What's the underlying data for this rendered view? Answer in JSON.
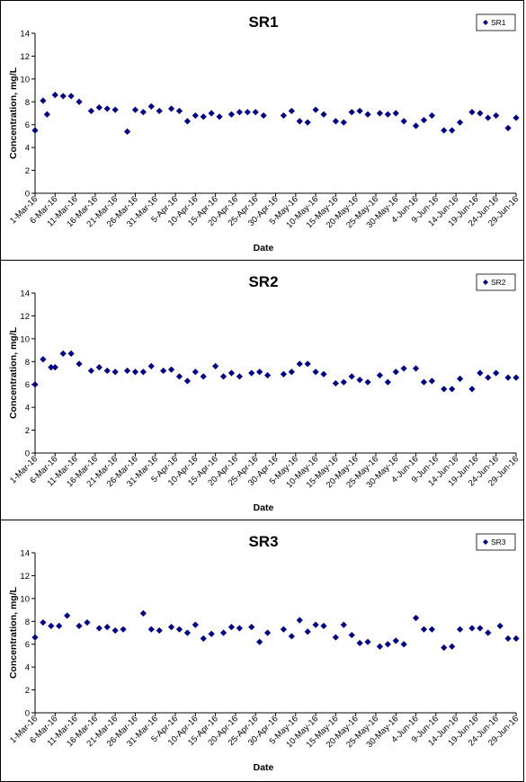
{
  "chart_data": [
    {
      "type": "scatter",
      "title": "SR1",
      "xlabel": "Date",
      "ylabel": "Concentration, mg/L",
      "ylim": [
        0,
        14
      ],
      "yticks": [
        0,
        2,
        4,
        6,
        8,
        10,
        12,
        14
      ],
      "xlim": [
        "2016-03-01",
        "2016-06-29"
      ],
      "xtick_labels": [
        "1-Mar-16",
        "6-Mar-16",
        "11-Mar-16",
        "16-Mar-16",
        "21-Mar-16",
        "26-Mar-16",
        "31-Mar-16",
        "5-Apr-16",
        "10-Apr-16",
        "15-Apr-16",
        "20-Apr-16",
        "25-Apr-16",
        "30-Apr-16",
        "5-May-16",
        "10-May-16",
        "15-May-16",
        "20-May-16",
        "25-May-16",
        "30-May-16",
        "4-Jun-16",
        "9-Jun-16",
        "14-Jun-16",
        "19-Jun-16",
        "24-Jun-16",
        "29-Jun-16"
      ],
      "legend": "top-right",
      "grid": false,
      "color": "#000080",
      "series": [
        {
          "name": "SR1",
          "x": [
            "2016-03-01",
            "2016-03-03",
            "2016-03-04",
            "2016-03-06",
            "2016-03-08",
            "2016-03-10",
            "2016-03-12",
            "2016-03-15",
            "2016-03-17",
            "2016-03-19",
            "2016-03-21",
            "2016-03-24",
            "2016-03-26",
            "2016-03-28",
            "2016-03-30",
            "2016-04-01",
            "2016-04-04",
            "2016-04-06",
            "2016-04-08",
            "2016-04-10",
            "2016-04-12",
            "2016-04-14",
            "2016-04-16",
            "2016-04-19",
            "2016-04-21",
            "2016-04-23",
            "2016-04-25",
            "2016-04-27",
            "2016-05-02",
            "2016-05-04",
            "2016-05-06",
            "2016-05-08",
            "2016-05-10",
            "2016-05-12",
            "2016-05-15",
            "2016-05-17",
            "2016-05-19",
            "2016-05-21",
            "2016-05-23",
            "2016-05-26",
            "2016-05-28",
            "2016-05-30",
            "2016-06-01",
            "2016-06-04",
            "2016-06-06",
            "2016-06-08",
            "2016-06-11",
            "2016-06-13",
            "2016-06-15",
            "2016-06-18",
            "2016-06-20",
            "2016-06-22",
            "2016-06-24",
            "2016-06-27",
            "2016-06-29"
          ],
          "y": [
            5.5,
            8.1,
            6.9,
            8.6,
            8.5,
            8.5,
            8.0,
            7.2,
            7.5,
            7.4,
            7.3,
            5.4,
            7.3,
            7.1,
            7.6,
            7.2,
            7.4,
            7.2,
            6.3,
            6.8,
            6.7,
            7.0,
            6.7,
            6.9,
            7.1,
            7.1,
            7.1,
            6.8,
            6.8,
            7.2,
            6.3,
            6.2,
            7.3,
            6.9,
            6.3,
            6.2,
            7.1,
            7.2,
            6.9,
            7.0,
            6.9,
            7.0,
            6.3,
            5.9,
            6.4,
            6.8,
            5.5,
            5.5,
            6.2,
            7.1,
            7.0,
            6.6,
            6.8,
            5.7,
            6.6
          ]
        }
      ]
    },
    {
      "type": "scatter",
      "title": "SR2",
      "xlabel": "Date",
      "ylabel": "Concentration, mg/L",
      "ylim": [
        0,
        14
      ],
      "yticks": [
        0,
        2,
        4,
        6,
        8,
        10,
        12,
        14
      ],
      "xlim": [
        "2016-03-01",
        "2016-06-29"
      ],
      "xtick_labels": [
        "1-Mar-16",
        "6-Mar-16",
        "11-Mar-16",
        "16-Mar-16",
        "21-Mar-16",
        "26-Mar-16",
        "31-Mar-16",
        "5-Apr-16",
        "10-Apr-16",
        "15-Apr-16",
        "20-Apr-16",
        "25-Apr-16",
        "30-Apr-16",
        "5-May-16",
        "10-May-16",
        "15-May-16",
        "20-May-16",
        "25-May-16",
        "30-May-16",
        "4-Jun-16",
        "9-Jun-16",
        "14-Jun-16",
        "19-Jun-16",
        "24-Jun-16",
        "29-Jun-16"
      ],
      "legend": "top-right",
      "grid": false,
      "color": "#000080",
      "series": [
        {
          "name": "SR2",
          "x": [
            "2016-03-01",
            "2016-03-03",
            "2016-03-05",
            "2016-03-06",
            "2016-03-08",
            "2016-03-10",
            "2016-03-12",
            "2016-03-15",
            "2016-03-17",
            "2016-03-19",
            "2016-03-21",
            "2016-03-24",
            "2016-03-26",
            "2016-03-28",
            "2016-03-30",
            "2016-04-02",
            "2016-04-04",
            "2016-04-06",
            "2016-04-08",
            "2016-04-10",
            "2016-04-12",
            "2016-04-15",
            "2016-04-17",
            "2016-04-19",
            "2016-04-21",
            "2016-04-24",
            "2016-04-26",
            "2016-04-28",
            "2016-05-02",
            "2016-05-04",
            "2016-05-06",
            "2016-05-08",
            "2016-05-10",
            "2016-05-12",
            "2016-05-15",
            "2016-05-17",
            "2016-05-19",
            "2016-05-21",
            "2016-05-23",
            "2016-05-26",
            "2016-05-28",
            "2016-05-30",
            "2016-06-01",
            "2016-06-04",
            "2016-06-06",
            "2016-06-08",
            "2016-06-11",
            "2016-06-13",
            "2016-06-15",
            "2016-06-18",
            "2016-06-20",
            "2016-06-22",
            "2016-06-24",
            "2016-06-27",
            "2016-06-29"
          ],
          "y": [
            6.0,
            8.2,
            7.5,
            7.5,
            8.7,
            8.7,
            7.8,
            7.2,
            7.5,
            7.2,
            7.1,
            7.2,
            7.1,
            7.1,
            7.6,
            7.2,
            7.3,
            6.7,
            6.3,
            7.1,
            6.7,
            7.6,
            6.7,
            7.0,
            6.7,
            7.0,
            7.1,
            6.8,
            6.9,
            7.1,
            7.8,
            7.8,
            7.1,
            6.9,
            6.1,
            6.2,
            6.7,
            6.4,
            6.2,
            6.8,
            6.2,
            7.1,
            7.4,
            7.4,
            6.2,
            6.3,
            5.6,
            5.6,
            6.5,
            5.6,
            7.0,
            6.6,
            7.0,
            6.6,
            6.6
          ]
        }
      ]
    },
    {
      "type": "scatter",
      "title": "SR3",
      "xlabel": "Date",
      "ylabel": "Concentration, mg/L",
      "ylim": [
        0,
        14
      ],
      "yticks": [
        0,
        2,
        4,
        6,
        8,
        10,
        12,
        14
      ],
      "xlim": [
        "2016-03-01",
        "2016-06-29"
      ],
      "xtick_labels": [
        "1-Mar-16",
        "6-Mar-16",
        "11-Mar-16",
        "16-Mar-16",
        "21-Mar-16",
        "26-Mar-16",
        "31-Mar-16",
        "5-Apr-16",
        "10-Apr-16",
        "15-Apr-16",
        "20-Apr-16",
        "25-Apr-16",
        "30-Apr-16",
        "5-May-16",
        "10-May-16",
        "15-May-16",
        "20-May-16",
        "25-May-16",
        "30-May-16",
        "4-Jun-16",
        "9-Jun-16",
        "14-Jun-16",
        "19-Jun-16",
        "24-Jun-16",
        "29-Jun-16"
      ],
      "legend": "top-right",
      "grid": false,
      "color": "#000080",
      "series": [
        {
          "name": "SR3",
          "x": [
            "2016-03-01",
            "2016-03-03",
            "2016-03-05",
            "2016-03-07",
            "2016-03-09",
            "2016-03-12",
            "2016-03-14",
            "2016-03-17",
            "2016-03-19",
            "2016-03-21",
            "2016-03-23",
            "2016-03-28",
            "2016-03-30",
            "2016-04-01",
            "2016-04-04",
            "2016-04-06",
            "2016-04-08",
            "2016-04-10",
            "2016-04-12",
            "2016-04-14",
            "2016-04-17",
            "2016-04-19",
            "2016-04-21",
            "2016-04-24",
            "2016-04-26",
            "2016-04-28",
            "2016-05-02",
            "2016-05-04",
            "2016-05-06",
            "2016-05-08",
            "2016-05-10",
            "2016-05-12",
            "2016-05-15",
            "2016-05-17",
            "2016-05-19",
            "2016-05-21",
            "2016-05-23",
            "2016-05-26",
            "2016-05-28",
            "2016-05-30",
            "2016-06-01",
            "2016-06-04",
            "2016-06-06",
            "2016-06-08",
            "2016-06-11",
            "2016-06-13",
            "2016-06-15",
            "2016-06-18",
            "2016-06-20",
            "2016-06-22",
            "2016-06-25",
            "2016-06-27",
            "2016-06-29"
          ],
          "y": [
            6.6,
            7.9,
            7.6,
            7.6,
            8.5,
            7.6,
            7.9,
            7.4,
            7.5,
            7.2,
            7.3,
            8.7,
            7.3,
            7.2,
            7.5,
            7.3,
            7.0,
            7.7,
            6.5,
            6.9,
            7.0,
            7.5,
            7.4,
            7.5,
            6.2,
            7.0,
            7.3,
            6.7,
            8.1,
            7.1,
            7.7,
            7.6,
            6.6,
            7.7,
            6.8,
            6.1,
            6.2,
            5.8,
            6.0,
            6.3,
            6.0,
            8.3,
            7.3,
            7.3,
            5.7,
            5.8,
            7.3,
            7.4,
            7.4,
            7.0,
            7.6,
            6.5,
            6.5
          ]
        }
      ]
    }
  ]
}
